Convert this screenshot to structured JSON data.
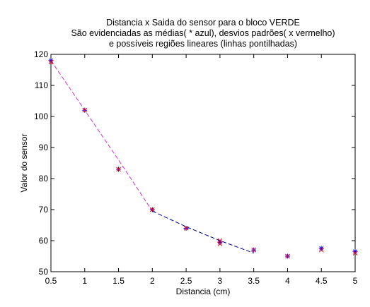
{
  "chart_data": {
    "type": "scatter",
    "title": [
      "Distancia x Saida do sensor para o bloco VERDE",
      "São evidenciadas as médias( * azul), desvios padrões( x vermelho)",
      "e possíveis regiões lineares (linhas pontilhadas)"
    ],
    "xlabel": "Distancia (cm)",
    "ylabel": "Valor do sensor",
    "xlim": [
      0.5,
      5
    ],
    "ylim": [
      50,
      120
    ],
    "xticks": [
      "0.5",
      "1",
      "1.5",
      "2",
      "2.5",
      "3",
      "3.5",
      "4",
      "4.5",
      "5"
    ],
    "yticks": [
      "50",
      "60",
      "70",
      "80",
      "90",
      "100",
      "110",
      "120"
    ],
    "grid": false,
    "series": [
      {
        "marker": "*",
        "color": "#0000ff",
        "x": [
          0.5,
          1.0,
          1.5,
          2.0,
          2.5,
          3.0,
          3.5,
          4.0,
          4.5,
          5.0
        ],
        "y": [
          118,
          102,
          83,
          70,
          64,
          59.5,
          57,
          55,
          57.5,
          56.5
        ]
      },
      {
        "marker": "x",
        "color": "#ff0000",
        "x": [
          0.5,
          1.0,
          1.5,
          2.0,
          2.5,
          3.0,
          3.0,
          3.5,
          4.0,
          4.5,
          5.0
        ],
        "y": [
          117.5,
          102,
          83,
          70,
          64,
          59,
          60,
          57,
          55,
          57,
          56
        ]
      },
      {
        "line": "dashed",
        "color": "#cc33cc",
        "x": [
          0.5,
          1.0,
          1.5,
          2.0
        ],
        "y": [
          118,
          102,
          86,
          69.5
        ]
      },
      {
        "line": "dashed",
        "color": "#000099",
        "x": [
          2.0,
          2.5,
          3.0,
          3.5
        ],
        "y": [
          69.5,
          64.5,
          60,
          56
        ]
      }
    ]
  }
}
